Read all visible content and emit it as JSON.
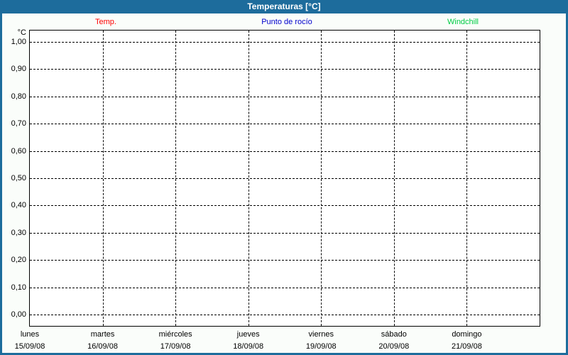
{
  "window": {
    "title": "Temperaturas [°C]"
  },
  "legend": {
    "items": [
      {
        "label": "Temp.",
        "color": "#ff0000"
      },
      {
        "label": "Punto de rocío",
        "color": "#0000cd"
      },
      {
        "label": "Windchill",
        "color": "#00cc44"
      }
    ]
  },
  "chart_data": {
    "type": "line",
    "title": "Temperaturas [°C]",
    "ylabel": "°C",
    "ylim": [
      0.0,
      1.0
    ],
    "y_tick_step": 0.1,
    "y_ticks": [
      "1,00",
      "0,90",
      "0,80",
      "0,70",
      "0,60",
      "0,50",
      "0,40",
      "0,30",
      "0,20",
      "0,10",
      "0,00"
    ],
    "x_categories": [
      {
        "day": "lunes",
        "date": "15/09/08"
      },
      {
        "day": "martes",
        "date": "16/09/08"
      },
      {
        "day": "miércoles",
        "date": "17/09/08"
      },
      {
        "day": "jueves",
        "date": "18/09/08"
      },
      {
        "day": "viernes",
        "date": "19/09/08"
      },
      {
        "day": "sábado",
        "date": "20/09/08"
      },
      {
        "day": "domingo",
        "date": "21/09/08"
      }
    ],
    "series": [
      {
        "name": "Temp.",
        "color": "#ff0000",
        "values": []
      },
      {
        "name": "Punto de rocío",
        "color": "#0000cd",
        "values": []
      },
      {
        "name": "Windchill",
        "color": "#00cc44",
        "values": []
      }
    ],
    "grid": "dashed",
    "legend_position": "top"
  },
  "colors": {
    "titlebar": "#1d6c9c",
    "frame": "#1d6c9c",
    "background": "#fafdfa",
    "plot_background": "#ffffff",
    "gridline": "#000000"
  }
}
